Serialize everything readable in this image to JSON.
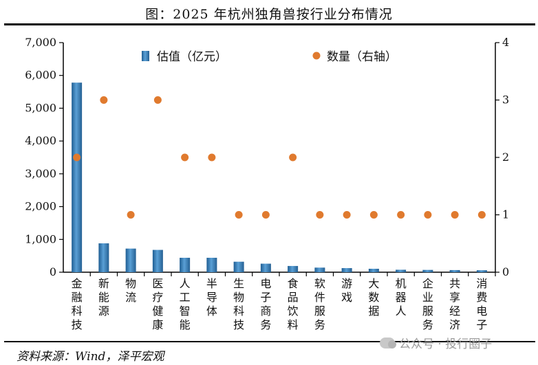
{
  "title": "图：2025 年杭州独角兽按行业分布情况",
  "source": "资料来源：Wind，泽平宏观",
  "watermark": "公众号 · 投行圈子",
  "colors": {
    "bar": "#3a7db8",
    "dot": "#e07a2e",
    "axis": "#000000"
  },
  "chart_data": {
    "type": "bar",
    "categories": [
      "金融科技",
      "新能源",
      "物流",
      "医疗健康",
      "人工智能",
      "半导体",
      "生物科技",
      "电子商务",
      "食品饮料",
      "软件服务",
      "游戏",
      "大数据",
      "机器人",
      "企业服务",
      "共享经济",
      "消费电子"
    ],
    "series": [
      {
        "name": "估值（亿元）",
        "type": "bar",
        "axis": "left",
        "values": [
          5780,
          880,
          720,
          680,
          440,
          440,
          320,
          260,
          190,
          140,
          125,
          105,
          75,
          70,
          65,
          60
        ]
      },
      {
        "name": "数量（右轴）",
        "type": "scatter",
        "axis": "right",
        "values": [
          2,
          3,
          1,
          3,
          2,
          2,
          1,
          1,
          2,
          1,
          1,
          1,
          1,
          1,
          1,
          1
        ]
      }
    ],
    "ylim": [
      0,
      7000
    ],
    "y_ticks": [
      "0",
      "1,000",
      "2,000",
      "3,000",
      "4,000",
      "5,000",
      "6,000",
      "7,000"
    ],
    "y2lim": [
      0,
      4
    ],
    "y2_ticks": [
      "0",
      "1",
      "2",
      "3",
      "4"
    ],
    "legend_position": "top"
  }
}
